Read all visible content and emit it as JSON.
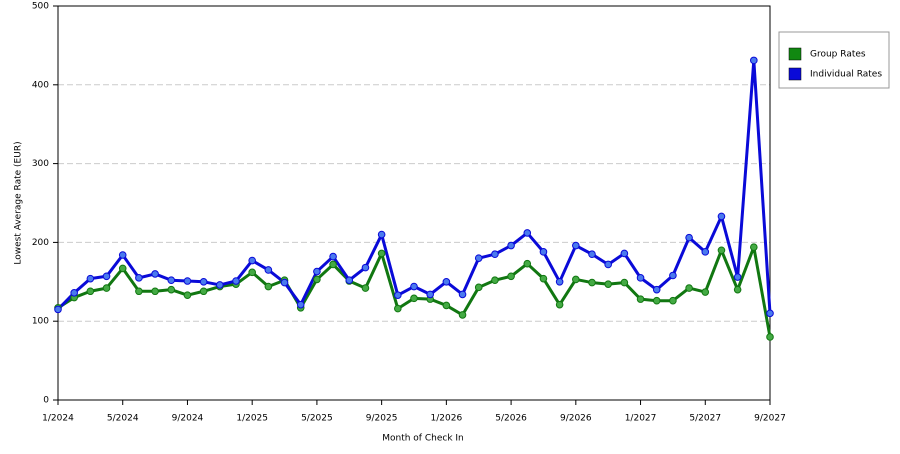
{
  "chart_data": {
    "type": "line",
    "x_label": "Month of Check In",
    "y_label": "Lowest Average Rate (EUR)",
    "categories": [
      "1/2024",
      null,
      null,
      null,
      "5/2024",
      null,
      null,
      null,
      "9/2024",
      null,
      null,
      null,
      "1/2025",
      null,
      null,
      null,
      "5/2025",
      null,
      null,
      null,
      "9/2025",
      null,
      null,
      null,
      "1/2026",
      null,
      null,
      null,
      "5/2026",
      null,
      null,
      null,
      "9/2026",
      null,
      null,
      null,
      "1/2027",
      null,
      null,
      null,
      "5/2027",
      null,
      null,
      null,
      "9/2027"
    ],
    "series": [
      {
        "name": "Group Rates",
        "color": "#117711",
        "marker_color": "#44aa44",
        "legend_color": "#118811",
        "values": [
          117,
          130,
          138,
          142,
          167,
          138,
          138,
          140,
          133,
          138,
          144,
          147,
          162,
          144,
          152,
          117,
          153,
          172,
          151,
          142,
          186,
          116,
          129,
          128,
          120,
          108,
          143,
          152,
          157,
          173,
          154,
          121,
          153,
          149,
          147,
          149,
          128,
          126,
          126,
          142,
          137,
          190,
          140,
          194,
          80
        ]
      },
      {
        "name": "Individual Rates",
        "color": "#0a0ad8",
        "marker_color": "#4a7aee",
        "legend_color": "#0a0ad8",
        "values": [
          115,
          136,
          154,
          157,
          184,
          155,
          160,
          152,
          151,
          150,
          146,
          151,
          177,
          165,
          149,
          121,
          163,
          182,
          152,
          168,
          210,
          133,
          144,
          134,
          150,
          134,
          180,
          185,
          196,
          212,
          188,
          150,
          196,
          185,
          172,
          186,
          155,
          140,
          158,
          206,
          188,
          233,
          156,
          431,
          110
        ]
      }
    ],
    "ylim": [
      0,
      500
    ],
    "yticks": [
      0,
      100,
      200,
      300,
      400,
      500
    ],
    "grid": true,
    "legend": "right"
  }
}
